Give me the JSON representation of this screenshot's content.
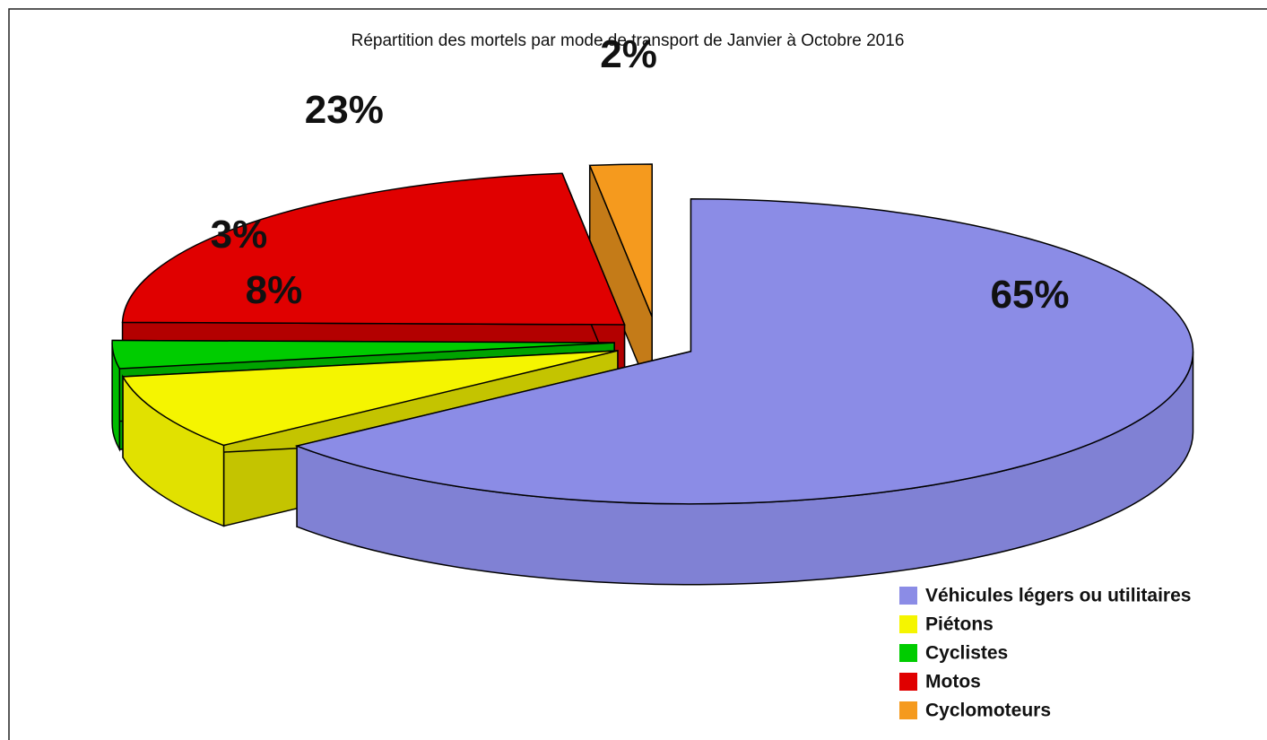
{
  "chart_data": {
    "type": "pie",
    "title": "Répartition des mortels par mode de transport de Janvier à Octobre 2016",
    "categories": [
      "Véhicules légers ou utilitaires",
      "Piétons",
      "Cyclistes",
      "Motos",
      "Cyclomoteurs"
    ],
    "values": [
      65,
      8,
      3,
      23,
      2
    ],
    "value_labels": [
      "65%",
      "8%",
      "3%",
      "23%",
      "2%"
    ],
    "colors": [
      "#8b8ce6",
      "#f5f500",
      "#00cc00",
      "#e00000",
      "#f59a1e"
    ],
    "legend": "bottom-right"
  }
}
